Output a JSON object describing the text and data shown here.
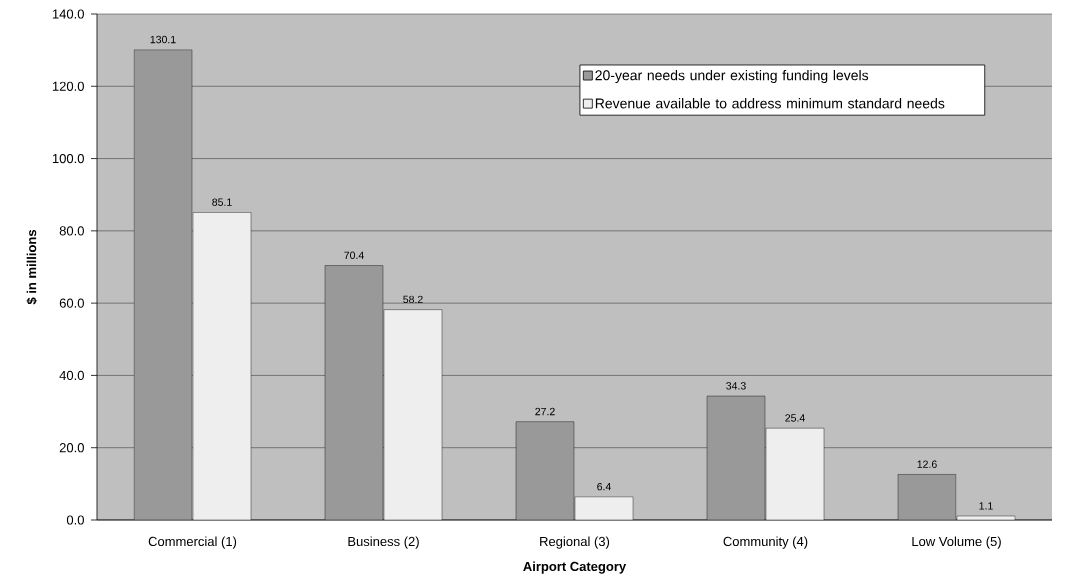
{
  "chart_data": {
    "type": "bar",
    "xlabel": "Airport Category",
    "ylabel": "$ in millions",
    "categories": [
      "Commercial (1)",
      "Business (2)",
      "Regional (3)",
      "Community (4)",
      "Low Volume (5)"
    ],
    "series": [
      {
        "name": "20-year needs under existing funding levels",
        "color": "#999999",
        "values": [
          130.1,
          70.4,
          27.2,
          34.3,
          12.6
        ]
      },
      {
        "name": "Revenue available to address minimum standard needs",
        "color": "#eeeeee",
        "values": [
          85.1,
          58.2,
          6.4,
          25.4,
          1.1
        ]
      }
    ],
    "ylim": [
      0,
      140
    ],
    "yticks": [
      {
        "value": 0,
        "label": "0.0"
      },
      {
        "value": 20,
        "label": "20.0"
      },
      {
        "value": 40,
        "label": "40.0"
      },
      {
        "value": 60,
        "label": "60.0"
      },
      {
        "value": 80,
        "label": "80.0"
      },
      {
        "value": 100,
        "label": "100.0"
      },
      {
        "value": 120,
        "label": "120.0"
      },
      {
        "value": 140,
        "label": "140.0"
      }
    ],
    "grid": "y",
    "legend": "top right",
    "data_labels": true
  }
}
